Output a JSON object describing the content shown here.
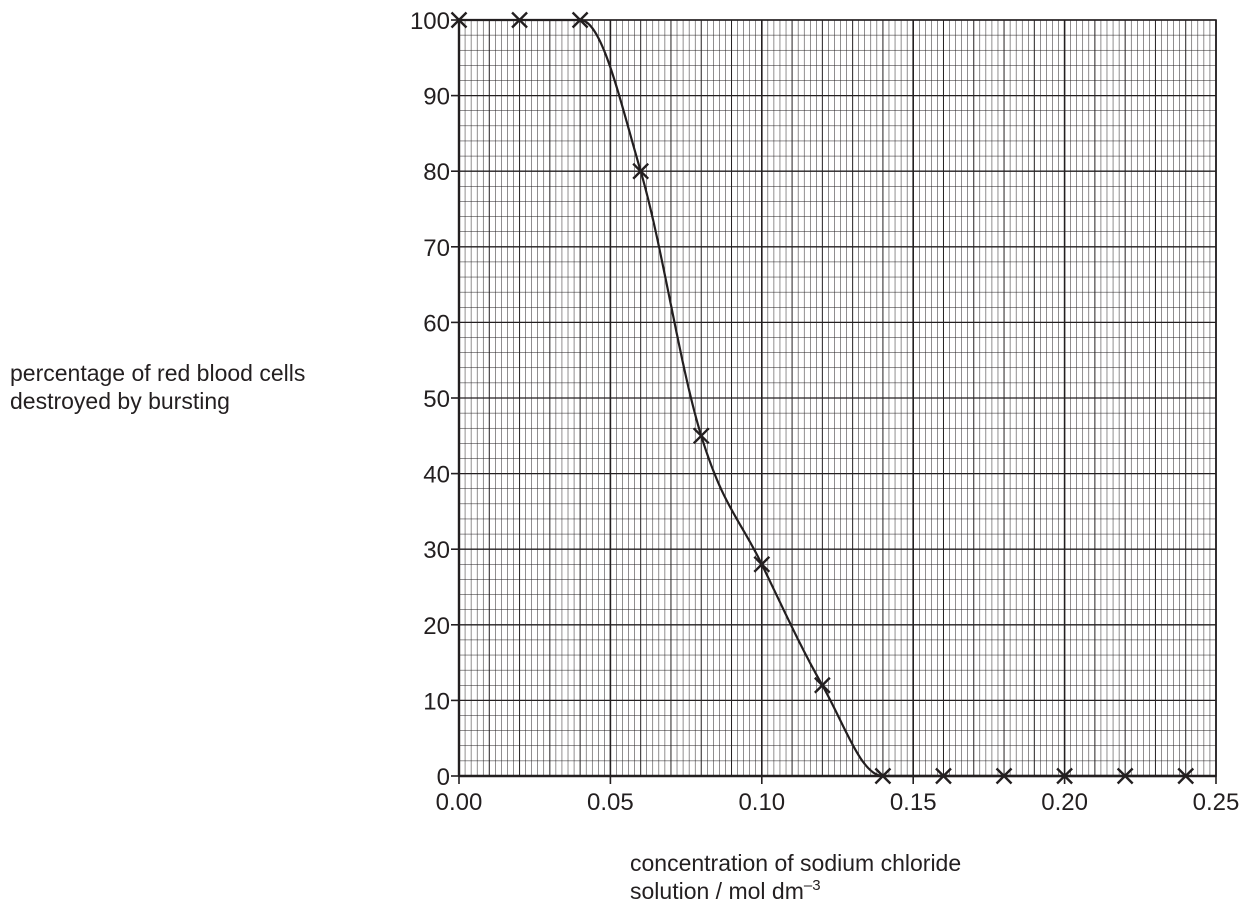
{
  "chart_data": {
    "type": "line",
    "ylabel": [
      "percentage of red blood cells",
      "destroyed by bursting"
    ],
    "xlabel": [
      "concentration of sodium chloride",
      "solution / mol dm",
      "–3"
    ],
    "x_ticks": [
      "0.00",
      "0.05",
      "0.10",
      "0.15",
      "0.20",
      "0.25"
    ],
    "y_ticks": [
      "0",
      "10",
      "20",
      "30",
      "40",
      "50",
      "60",
      "70",
      "80",
      "90",
      "100"
    ],
    "xlim": [
      0,
      0.25
    ],
    "ylim": [
      0,
      100
    ],
    "grid": true,
    "marker": "x",
    "series": [
      {
        "x": [
          0.0,
          0.02,
          0.04,
          0.06,
          0.08,
          0.1,
          0.12,
          0.14,
          0.16,
          0.18,
          0.2,
          0.22,
          0.24
        ],
        "y": [
          100,
          100,
          100,
          80,
          45,
          28,
          12,
          0,
          0,
          0,
          0,
          0,
          0
        ]
      }
    ]
  }
}
